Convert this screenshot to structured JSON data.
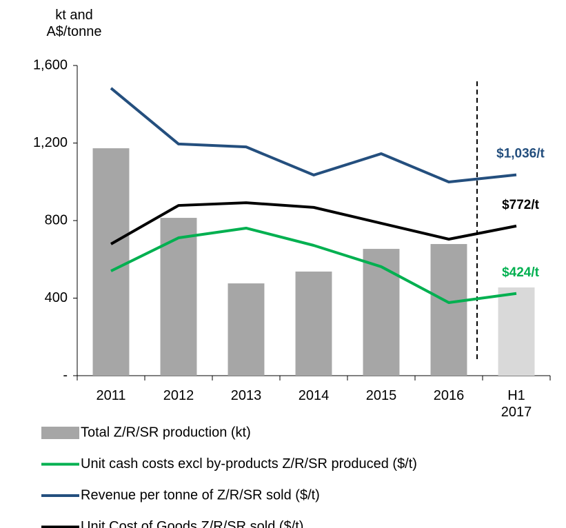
{
  "chart_data": {
    "type": "combo",
    "y_label": "kt and A$/tonne",
    "categories": [
      "2011",
      "2012",
      "2013",
      "2014",
      "2015",
      "2016",
      "H1 2017"
    ],
    "ylim": [
      0,
      1600
    ],
    "yticks": [
      {
        "value": 0,
        "label": "-"
      },
      400,
      800,
      {
        "value": 1200,
        "label": "1,200"
      },
      {
        "value": 1600,
        "label": "1,600"
      }
    ],
    "series": [
      {
        "name": "Total Z/R/SR production (kt)",
        "type": "bar",
        "color": "#a6a6a6",
        "colors": [
          "#a6a6a6",
          "#a6a6a6",
          "#a6a6a6",
          "#a6a6a6",
          "#a6a6a6",
          "#a6a6a6",
          "#d9d9d9"
        ],
        "values": [
          1173,
          814,
          476,
          537,
          654,
          679,
          455
        ]
      },
      {
        "name": "Unit cash costs excl by-products Z/R/SR produced ($/t)",
        "type": "line",
        "color": "#00b050",
        "values": [
          540,
          711,
          761,
          672,
          562,
          377,
          424
        ],
        "value_labels": [
          null,
          null,
          null,
          null,
          null,
          null,
          "$424/t"
        ]
      },
      {
        "name": "Revenue per tonne of Z/R/SR sold ($/t)",
        "type": "line",
        "color": "#244f7e",
        "values": [
          1483,
          1195,
          1180,
          1035,
          1145,
          999,
          1036
        ],
        "value_labels": [
          null,
          null,
          null,
          null,
          null,
          null,
          "$1,036/t"
        ]
      },
      {
        "name": "Unit Cost of Goods Z/R/SR sold ($/t)",
        "type": "line",
        "color": "#000000",
        "values": [
          679,
          878,
          892,
          868,
          786,
          704,
          772
        ],
        "value_labels": [
          null,
          null,
          null,
          null,
          null,
          null,
          "$772/t"
        ]
      }
    ]
  }
}
